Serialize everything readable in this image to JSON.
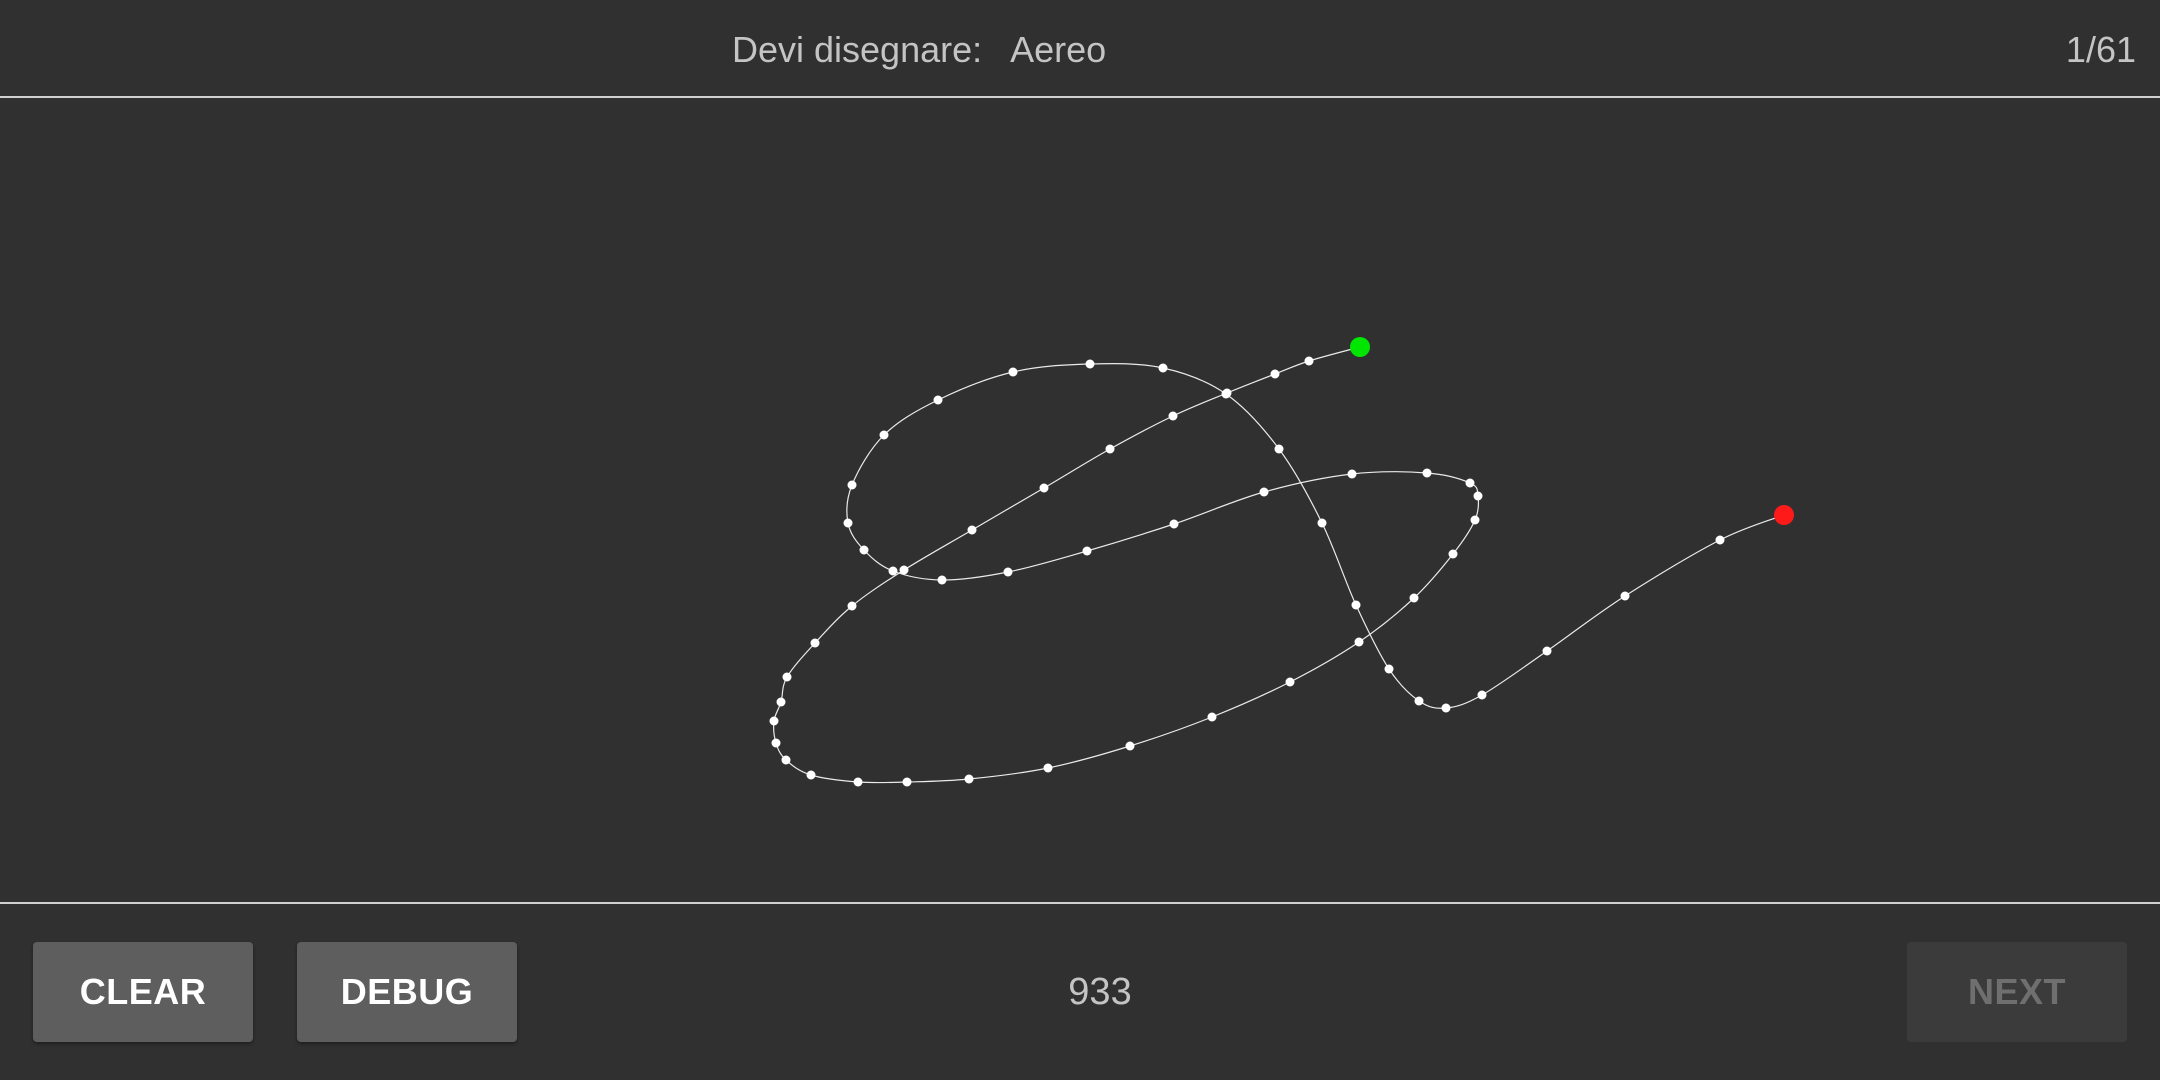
{
  "header": {
    "prompt_label": "Devi disegnare:",
    "target_word": "Aereo",
    "progress": "1/61"
  },
  "footer": {
    "clear_label": "CLEAR",
    "debug_label": "DEBUG",
    "score": "933",
    "next_label": "NEXT",
    "next_enabled": false
  },
  "colors": {
    "background": "#303030",
    "stroke": "#ffffff",
    "start_marker": "#00e600",
    "end_marker": "#ff1a1a",
    "button": "#5e5e5e",
    "button_disabled": "#3b3b3b"
  }
}
